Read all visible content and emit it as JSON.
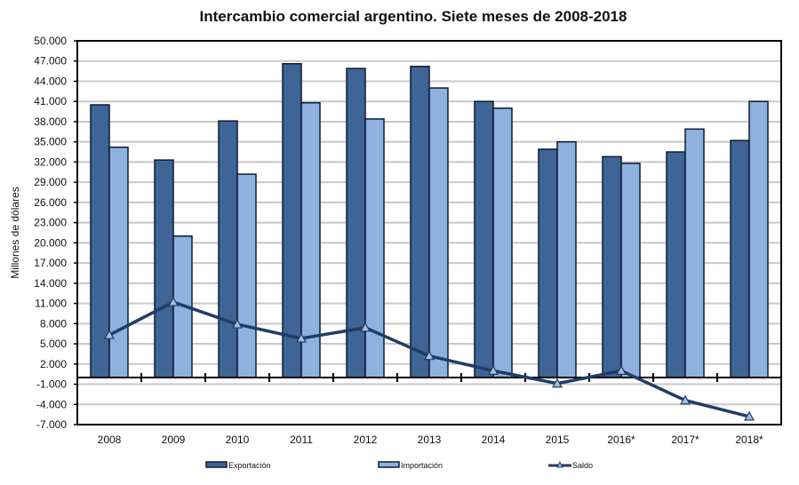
{
  "chart_data": {
    "type": "bar",
    "title": "Intercambio comercial argentino. Siete meses de 2008-2018",
    "xlabel": "",
    "ylabel": "Millones de dólares",
    "ylim": [
      -7000,
      50000
    ],
    "yticks": [
      50000,
      47000,
      44000,
      41000,
      38000,
      35000,
      32000,
      29000,
      26000,
      23000,
      20000,
      17000,
      14000,
      11000,
      8000,
      5000,
      2000,
      -1000,
      -4000,
      -7000
    ],
    "ytick_labels": [
      "50.000",
      "47.000",
      "44.000",
      "41.000",
      "38.000",
      "35.000",
      "32.000",
      "29.000",
      "26.000",
      "23.000",
      "20.000",
      "17.000",
      "14.000",
      "11.000",
      "8.000",
      "5.000",
      "2.000",
      "-1.000",
      "-4.000",
      "-7.000"
    ],
    "categories": [
      "2008",
      "2009",
      "2010",
      "2011",
      "2012",
      "2013",
      "2014",
      "2015",
      "2016*",
      "2017*",
      "2018*"
    ],
    "grid": true,
    "legend_position": "bottom",
    "series": [
      {
        "name": "Exportación",
        "type": "bar",
        "color": "#3f6496",
        "values": [
          40500,
          32300,
          38100,
          46600,
          45900,
          46200,
          41000,
          33900,
          32800,
          33500,
          35200
        ]
      },
      {
        "name": "Importación",
        "type": "bar",
        "color": "#8eb1e0",
        "values": [
          34200,
          21000,
          30200,
          40800,
          38400,
          43000,
          40000,
          35000,
          31800,
          36900,
          41000
        ]
      },
      {
        "name": "Saldo",
        "type": "line",
        "color": "#1f3d66",
        "values": [
          6300,
          11200,
          7900,
          5800,
          7400,
          3200,
          1000,
          -900,
          1000,
          -3400,
          -5800
        ]
      }
    ]
  }
}
